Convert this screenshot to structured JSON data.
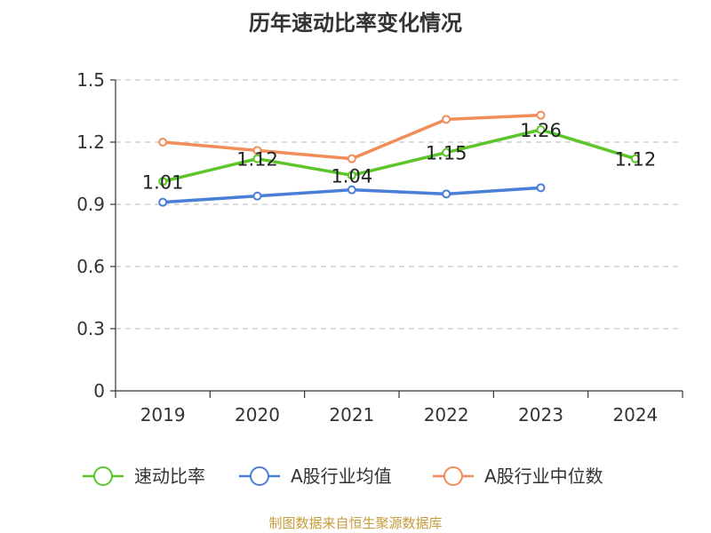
{
  "chart_data": {
    "type": "line",
    "title": "历年速动比率变化情况",
    "categories": [
      "2019",
      "2020",
      "2021",
      "2022",
      "2023",
      "2024"
    ],
    "ylim": [
      0,
      1.5
    ],
    "yticks": [
      "0",
      "0.3",
      "0.6",
      "0.9",
      "1.2",
      "1.5"
    ],
    "grid": true,
    "legend_position": "bottom",
    "series": [
      {
        "name": "速动比率",
        "color": "#5cc529",
        "values": [
          1.01,
          1.12,
          1.04,
          1.15,
          1.26,
          1.12
        ],
        "labels": [
          "1.01",
          "1.12",
          "1.04",
          "1.15",
          "1.26",
          "1.12"
        ]
      },
      {
        "name": "A股行业均值",
        "color": "#4a7fd8",
        "values": [
          0.91,
          0.94,
          0.97,
          0.95,
          0.98,
          null
        ]
      },
      {
        "name": "A股行业中位数",
        "color": "#f28c58",
        "values": [
          1.2,
          1.16,
          1.12,
          1.31,
          1.33,
          null
        ]
      }
    ]
  },
  "source": "制图数据来自恒生聚源数据库"
}
